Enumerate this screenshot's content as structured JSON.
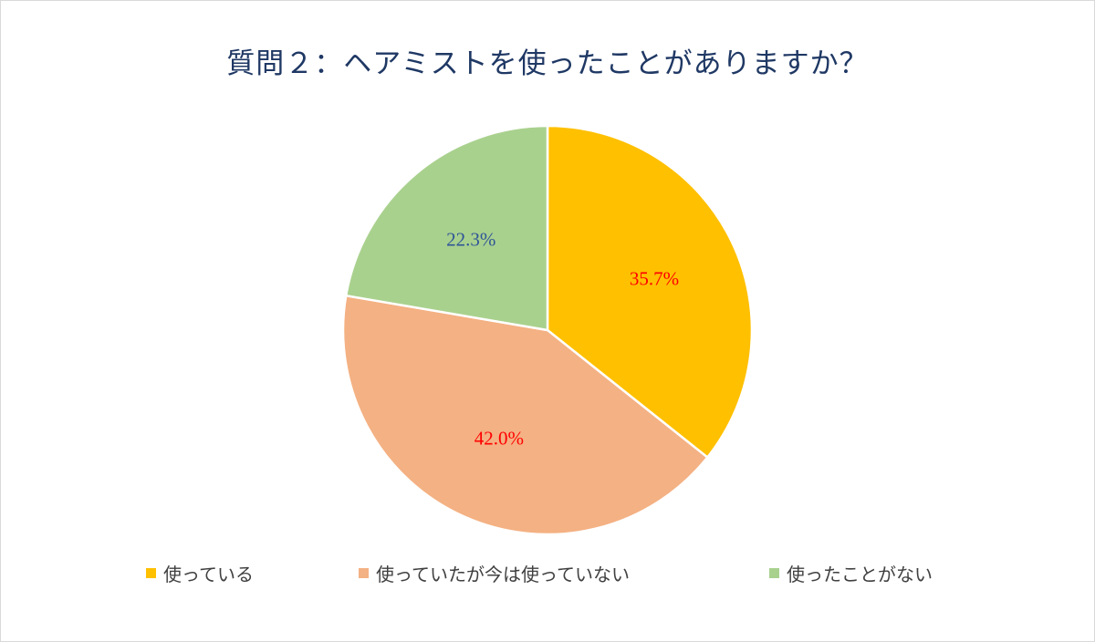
{
  "chart_data": {
    "type": "pie",
    "title": "質問２：ヘアミストを使ったことがありますか？",
    "start_angle_deg": 0,
    "direction": "clockwise",
    "slices": [
      {
        "label": "使っている",
        "value": 35.7,
        "value_label": "35.7%",
        "color": "#ffc000",
        "label_color": "#ff0000"
      },
      {
        "label": "使っていたが今は使っていない",
        "value": 42.0,
        "value_label": "42.0%",
        "color": "#f4b183",
        "label_color": "#ff0000"
      },
      {
        "label": "使ったことがない",
        "value": 22.3,
        "value_label": "22.3%",
        "color": "#a9d18e",
        "label_color": "#2f5597"
      }
    ],
    "legend_position": "bottom"
  }
}
